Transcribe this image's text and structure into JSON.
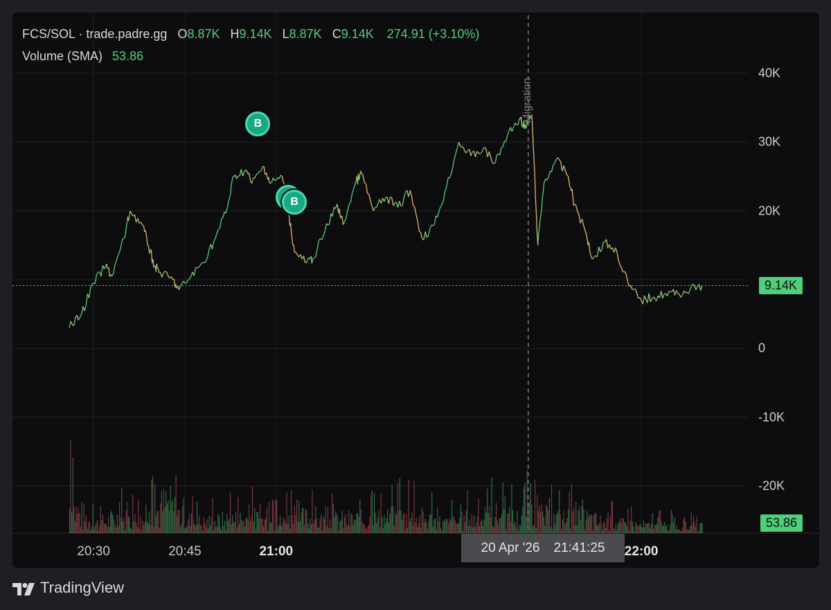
{
  "legend": {
    "symbol": "FCS/SOL",
    "separator": " · ",
    "source": "trade.padre.gg",
    "o_label": "O",
    "o_value": "8.87K",
    "h_label": "H",
    "h_value": "9.14K",
    "l_label": "L",
    "l_value": "8.87K",
    "c_label": "C",
    "c_value": "9.14K",
    "change": "274.91 (+3.10%)",
    "volume_label": "Volume (SMA)",
    "volume_value": "53.86"
  },
  "price_tag": "9.14K",
  "volume_tag": "53.86",
  "crosshair": {
    "date": "20 Apr '26",
    "time": "21:41:25"
  },
  "migration_label": "Migration",
  "trade_marker_label": "B",
  "brand": "TradingView",
  "colors": {
    "up": "#4fcf7a",
    "down": "#e0606a",
    "background": "#0d0d0f",
    "marker": "#17a884"
  },
  "chart_data": {
    "type": "line",
    "x_ticks": [
      {
        "label": "20:30",
        "bold": false
      },
      {
        "label": "20:45",
        "bold": false
      },
      {
        "label": "21:00",
        "bold": true
      },
      {
        "label": "22:00",
        "bold": true
      }
    ],
    "y_ticks": [
      "40K",
      "30K",
      "20K",
      "0",
      "-10K",
      "-20K"
    ],
    "ylim": [
      -27000,
      45000
    ],
    "xlim": [
      "20:25",
      "22:13"
    ],
    "last_price": 9140,
    "crosshair_time": "21:41:25",
    "trade_markers": [
      {
        "time": "20:57",
        "price": 32700
      },
      {
        "time": "21:02",
        "price": 22000
      },
      {
        "time": "21:03",
        "price": 21300
      }
    ],
    "price_series": {
      "name": "FCS/SOL",
      "x": [
        "20:26",
        "20:28",
        "20:30",
        "20:32",
        "20:33",
        "20:35",
        "20:36",
        "20:38",
        "20:39",
        "20:40",
        "20:41",
        "20:43",
        "20:44",
        "20:46",
        "20:48",
        "20:50",
        "20:52",
        "20:53",
        "20:55",
        "20:56",
        "20:58",
        "20:59",
        "21:01",
        "21:02",
        "21:03",
        "21:05",
        "21:06",
        "21:08",
        "21:10",
        "21:11",
        "21:13",
        "21:14",
        "21:16",
        "21:18",
        "21:20",
        "21:22",
        "21:24",
        "21:26",
        "21:28",
        "21:30",
        "21:32",
        "21:34",
        "21:36",
        "21:38",
        "21:40",
        "21:41",
        "21:42",
        "21:43",
        "21:44",
        "21:46",
        "21:48",
        "21:49",
        "21:51",
        "21:52",
        "21:54",
        "21:56",
        "21:58",
        "22:00",
        "22:02",
        "22:04",
        "22:06",
        "22:08",
        "22:10"
      ],
      "values": [
        3000,
        5000,
        9500,
        12000,
        10500,
        16000,
        20000,
        18000,
        15000,
        12000,
        11000,
        10000,
        8500,
        10500,
        12500,
        16000,
        20500,
        25000,
        26000,
        24000,
        26500,
        24000,
        25000,
        20000,
        14000,
        12500,
        13000,
        17000,
        21000,
        18000,
        24000,
        25500,
        20000,
        22000,
        20500,
        23000,
        16000,
        18000,
        23500,
        30000,
        28000,
        29000,
        27000,
        31000,
        33500,
        32000,
        34000,
        15000,
        24000,
        27500,
        25000,
        21000,
        16500,
        13000,
        15500,
        14000,
        9000,
        7000,
        7500,
        8000,
        8000,
        8500,
        9140
      ]
    },
    "volume_series": {
      "name": "Volume",
      "x": [
        "20:26",
        "20:30",
        "20:34",
        "20:38",
        "20:42",
        "20:45",
        "20:48",
        "20:52",
        "20:56",
        "21:00",
        "21:04",
        "21:08",
        "21:12",
        "21:16",
        "21:20",
        "21:24",
        "21:28",
        "21:32",
        "21:36",
        "21:40",
        "21:41",
        "21:42",
        "21:46",
        "21:50",
        "21:54",
        "21:58",
        "22:02",
        "22:06",
        "22:10"
      ],
      "values": [
        480,
        150,
        260,
        190,
        520,
        230,
        180,
        220,
        260,
        170,
        260,
        210,
        230,
        230,
        270,
        250,
        160,
        240,
        300,
        230,
        680,
        330,
        230,
        270,
        170,
        140,
        110,
        120,
        100
      ]
    }
  }
}
